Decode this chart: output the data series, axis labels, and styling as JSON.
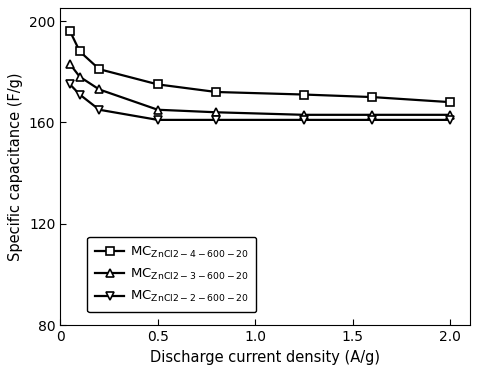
{
  "series": [
    {
      "label": "MC",
      "label_sub": "ZnCl2-4-600-20",
      "marker": "s",
      "x": [
        0.05,
        0.1,
        0.2,
        0.5,
        0.8,
        1.25,
        1.6,
        2.0
      ],
      "y": [
        196,
        188,
        181,
        175,
        172,
        171,
        170,
        168
      ]
    },
    {
      "label": "MC",
      "label_sub": "ZnCl2-3-600-20",
      "marker": "^",
      "x": [
        0.05,
        0.1,
        0.2,
        0.5,
        0.8,
        1.25,
        1.6,
        2.0
      ],
      "y": [
        183,
        178,
        173,
        165,
        164,
        163,
        163,
        163
      ]
    },
    {
      "label": "MC",
      "label_sub": "ZnCl2-2-600-20",
      "marker": "v",
      "x": [
        0.05,
        0.1,
        0.2,
        0.5,
        0.8,
        1.25,
        1.6,
        2.0
      ],
      "y": [
        175,
        171,
        165,
        161,
        161,
        161,
        161,
        161
      ]
    }
  ],
  "xlabel": "Discharge current density (A/g)",
  "ylabel": "Specific capacitance (F/g)",
  "xlim": [
    0,
    2.1
  ],
  "ylim": [
    80,
    205
  ],
  "yticks": [
    80,
    120,
    160,
    200
  ],
  "xticks": [
    0.0,
    0.5,
    1.0,
    1.5,
    2.0
  ],
  "xtick_labels": [
    "0",
    "0.5",
    "1.0",
    "1.5",
    "2.0"
  ],
  "line_color": "black",
  "marker_size": 6,
  "line_width": 1.6,
  "background_color": "#ffffff"
}
